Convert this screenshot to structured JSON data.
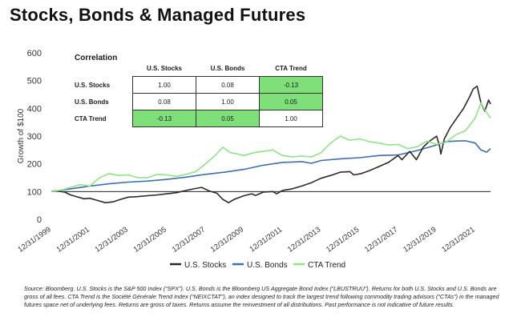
{
  "title": "Stocks, Bonds & Managed Futures",
  "correlation": {
    "heading": "Correlation",
    "columns": [
      "U.S. Stocks",
      "U.S. Bonds",
      "CTA Trend"
    ],
    "rows": [
      {
        "label": "U.S. Stocks",
        "cells": [
          "1.00",
          "0.08",
          "-0.13"
        ],
        "highlight": [
          false,
          false,
          true
        ]
      },
      {
        "label": "U.S. Bonds",
        "cells": [
          "0.08",
          "1.00",
          "0.05"
        ],
        "highlight": [
          false,
          false,
          true
        ]
      },
      {
        "label": "CTA Trend",
        "cells": [
          "-0.13",
          "0.05",
          "1.00"
        ],
        "highlight": [
          true,
          true,
          false
        ]
      }
    ],
    "highlight_color": "#7fe07a"
  },
  "source_note": "Source: Bloomberg.  U.S. Stocks is the S&P 500 Index (“SPX”).  U.S. Bonds is the Bloomberg US Aggregate Bond Index (“LBUSTRUU”).  Returns for both U.S. Stocks and U.S. Bonds are gross of all fees.  CTA Trend is the Société Générale Trend Index (“NEIXCTAT”), an index designed to track the largest trend following commodity trading advisors (“CTAs”) in the managed futures space net of underlying fees.  Returns are gross of taxes.  Returns assume the reinvestment of all distributions.  Past performance is not indicative of future results.",
  "chart_data": {
    "type": "line",
    "title": "Stocks, Bonds & Managed Futures",
    "xlabel": "",
    "ylabel": "Growth of $100",
    "ylim": [
      0,
      600
    ],
    "yticks": [
      0,
      100,
      200,
      300,
      400,
      500,
      600
    ],
    "xlim": [
      2000.0,
      2022.8
    ],
    "xtick_labels": [
      "12/31/1999",
      "12/31/2001",
      "12/31/2003",
      "12/31/2005",
      "12/31/2007",
      "12/31/2009",
      "12/31/2011",
      "12/31/2013",
      "12/31/2015",
      "12/31/2017",
      "12/31/2019",
      "12/31/2021"
    ],
    "xtick_values": [
      2000,
      2002,
      2004,
      2006,
      2008,
      2010,
      2012,
      2014,
      2016,
      2018,
      2020,
      2022
    ],
    "reference_line": 100,
    "grid": false,
    "legend_position": "bottom",
    "series": [
      {
        "name": "U.S. Stocks",
        "color": "#2b2b2b",
        "x": [
          2000.0,
          2000.2,
          2000.7,
          2001.0,
          2001.3,
          2001.7,
          2002.0,
          2002.5,
          2002.8,
          2003.2,
          2003.6,
          2004.0,
          2004.5,
          2005.0,
          2005.5,
          2006.0,
          2006.5,
          2007.0,
          2007.4,
          2007.8,
          2008.2,
          2008.6,
          2008.9,
          2009.2,
          2009.5,
          2009.8,
          2010.0,
          2010.4,
          2010.6,
          2011.0,
          2011.5,
          2011.7,
          2012.0,
          2012.5,
          2013.0,
          2013.5,
          2014.0,
          2014.5,
          2015.0,
          2015.5,
          2015.7,
          2016.1,
          2016.5,
          2017.0,
          2017.5,
          2018.0,
          2018.2,
          2018.6,
          2018.95,
          2019.3,
          2019.6,
          2020.0,
          2020.15,
          2020.22,
          2020.4,
          2020.7,
          2021.0,
          2021.4,
          2021.7,
          2021.9,
          2022.1,
          2022.3,
          2022.5,
          2022.7,
          2022.8
        ],
        "values": [
          100,
          103,
          98,
          88,
          82,
          74,
          76,
          66,
          60,
          63,
          72,
          80,
          82,
          85,
          88,
          92,
          96,
          104,
          110,
          115,
          102,
          94,
          72,
          60,
          72,
          80,
          85,
          92,
          86,
          98,
          100,
          92,
          104,
          110,
          120,
          132,
          148,
          158,
          170,
          172,
          160,
          165,
          175,
          190,
          205,
          230,
          215,
          245,
          215,
          260,
          280,
          300,
          265,
          235,
          290,
          330,
          360,
          400,
          440,
          470,
          480,
          420,
          390,
          430,
          415
        ]
      },
      {
        "name": "U.S. Bonds",
        "color": "#3f6fb0",
        "x": [
          2000.0,
          2001.0,
          2002.0,
          2003.0,
          2004.0,
          2005.0,
          2006.0,
          2007.0,
          2008.0,
          2009.0,
          2010.0,
          2011.0,
          2012.0,
          2013.0,
          2013.5,
          2014.0,
          2015.0,
          2016.0,
          2017.0,
          2018.0,
          2019.0,
          2020.0,
          2020.5,
          2021.0,
          2021.5,
          2022.0,
          2022.3,
          2022.6,
          2022.8
        ],
        "values": [
          100,
          110,
          120,
          128,
          134,
          138,
          144,
          152,
          162,
          170,
          180,
          195,
          205,
          208,
          202,
          212,
          218,
          222,
          230,
          232,
          248,
          268,
          280,
          282,
          283,
          275,
          250,
          242,
          255
        ]
      },
      {
        "name": "CTA Trend",
        "color": "#8fe486",
        "x": [
          2000.0,
          2000.5,
          2001.0,
          2001.5,
          2002.0,
          2002.5,
          2003.0,
          2003.5,
          2004.0,
          2004.5,
          2005.0,
          2005.5,
          2006.0,
          2006.5,
          2007.0,
          2007.5,
          2008.0,
          2008.5,
          2008.9,
          2009.3,
          2009.7,
          2010.0,
          2010.5,
          2011.0,
          2011.5,
          2012.0,
          2012.5,
          2013.0,
          2013.5,
          2014.0,
          2014.5,
          2015.0,
          2015.5,
          2016.0,
          2016.5,
          2017.0,
          2017.5,
          2018.0,
          2018.5,
          2019.0,
          2019.5,
          2020.0,
          2020.5,
          2021.0,
          2021.5,
          2022.0,
          2022.3,
          2022.5,
          2022.8
        ],
        "values": [
          100,
          105,
          115,
          125,
          120,
          150,
          165,
          158,
          160,
          150,
          150,
          162,
          160,
          155,
          162,
          172,
          200,
          230,
          260,
          240,
          235,
          230,
          240,
          245,
          250,
          230,
          225,
          228,
          225,
          240,
          275,
          300,
          285,
          290,
          280,
          275,
          268,
          270,
          255,
          262,
          282,
          270,
          278,
          305,
          320,
          365,
          420,
          395,
          365
        ]
      }
    ]
  }
}
